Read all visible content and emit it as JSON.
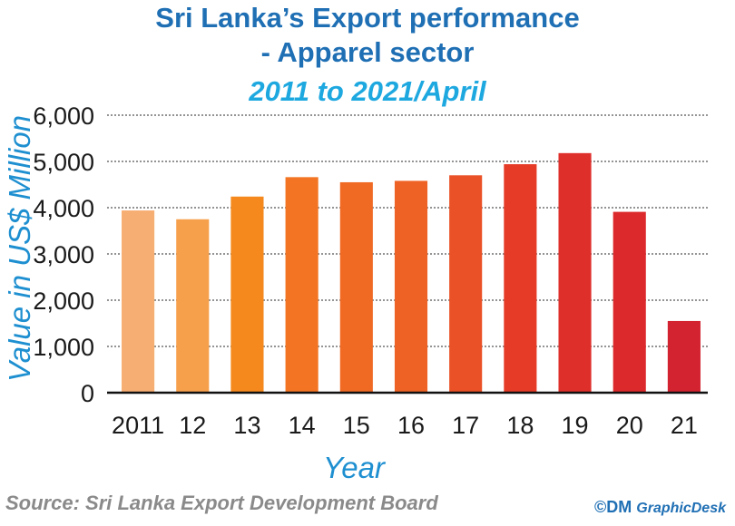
{
  "chart_data": {
    "type": "bar",
    "title": "Sri Lanka’s Export performance",
    "title_line2": "- Apparel sector",
    "subtitle": "2011 to 2021/April",
    "xlabel": "Year",
    "ylabel": "Value in US$ Million",
    "categories": [
      "2011",
      "12",
      "13",
      "14",
      "15",
      "16",
      "17",
      "18",
      "19",
      "20",
      "21"
    ],
    "values": [
      3940,
      3750,
      4240,
      4660,
      4550,
      4580,
      4700,
      4940,
      5180,
      3910,
      1550
    ],
    "ylim": [
      0,
      6000
    ],
    "yticks": [
      0,
      1000,
      2000,
      3000,
      4000,
      5000,
      6000
    ],
    "ytick_labels": [
      "0",
      "1,000",
      "2,000",
      "3,000",
      "4,000",
      "5,000",
      "6,000"
    ],
    "grid": true,
    "colors": [
      "#f7ae72",
      "#f7a04c",
      "#f5891d",
      "#f37422",
      "#f06a24",
      "#ee6226",
      "#ea5126",
      "#e63b27",
      "#df2f2b",
      "#dc2a2c",
      "#d32230"
    ]
  },
  "footer": {
    "source": "Source:  Sri Lanka Export Development Board",
    "credit_mark": "©DM",
    "credit_name": "GraphicDesk"
  }
}
